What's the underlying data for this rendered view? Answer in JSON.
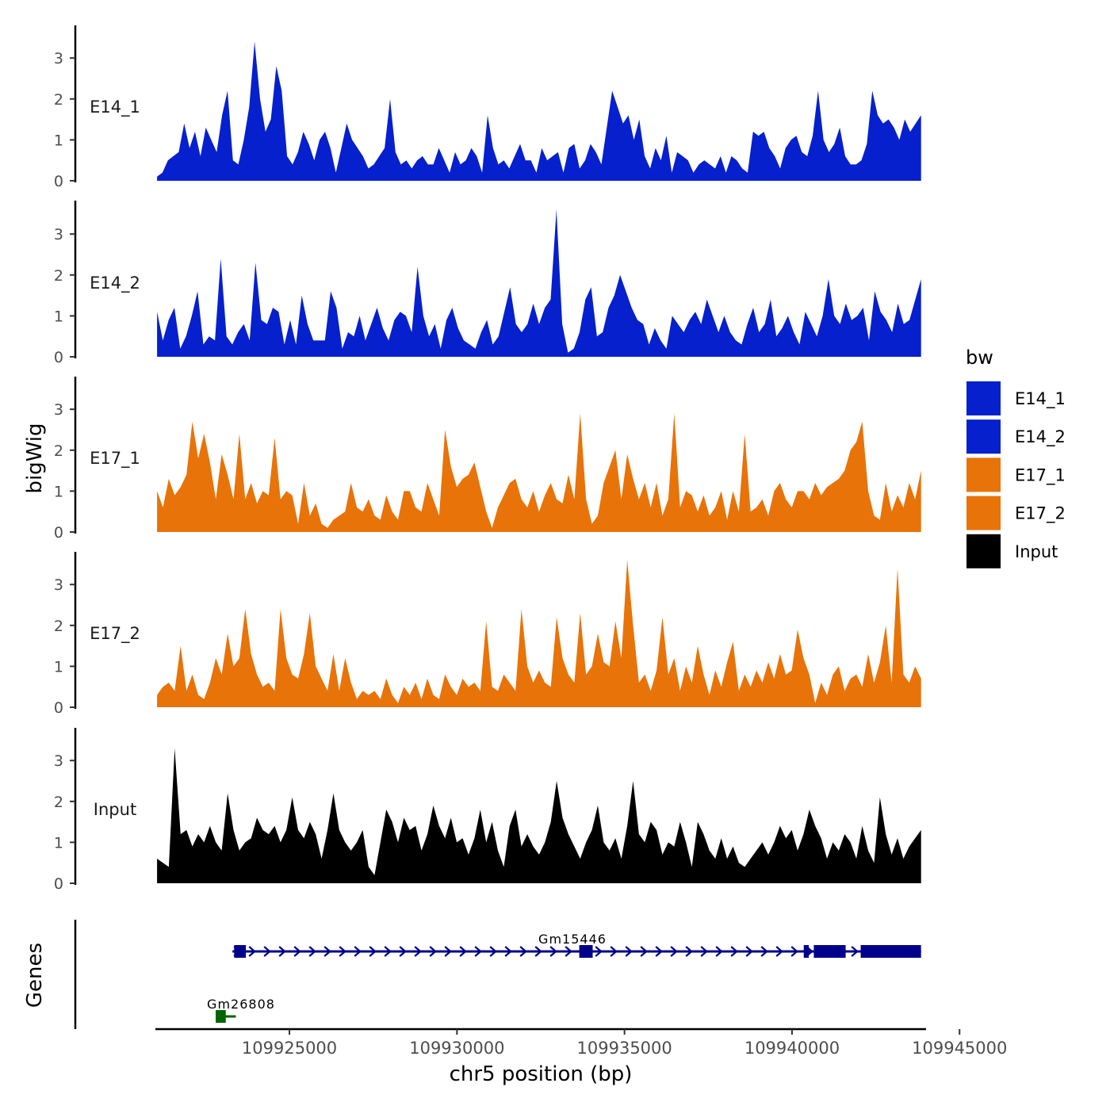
{
  "chart_data": {
    "type": "area",
    "y_axis_title": "bigWig",
    "genes_title": "Genes",
    "x_axis_title": "chr5 position (bp)",
    "x_range": [
      109921000,
      109944000
    ],
    "x_ticks": [
      109925000,
      109930000,
      109935000,
      109940000,
      109945000
    ],
    "x_tick_labels": [
      "109925000",
      "109930000",
      "109935000",
      "109940000",
      "109945000"
    ],
    "y_range": [
      0,
      3.8
    ],
    "y_ticks": [
      0,
      1,
      2,
      3
    ],
    "y_tick_labels": [
      "0",
      "1",
      "2",
      "3"
    ],
    "legend": {
      "title": "bw",
      "entries": [
        {
          "label": "E14_1",
          "color": "#0520CC"
        },
        {
          "label": "E14_2",
          "color": "#0520CC"
        },
        {
          "label": "E17_1",
          "color": "#E87309"
        },
        {
          "label": "E17_2",
          "color": "#E87309"
        },
        {
          "label": "Input",
          "color": "#000000"
        }
      ]
    },
    "series": [
      {
        "name": "E14_1",
        "color": "#0520CC",
        "x_start": 109921050,
        "x_end": 109943850,
        "values": [
          0.1,
          0.2,
          0.5,
          0.6,
          0.7,
          1.4,
          0.8,
          1.2,
          0.6,
          1.3,
          1.0,
          0.7,
          1.6,
          2.2,
          0.5,
          0.4,
          1.0,
          1.8,
          3.4,
          2.0,
          1.2,
          1.5,
          2.8,
          2.2,
          0.6,
          0.4,
          0.7,
          1.2,
          0.9,
          0.5,
          1.0,
          1.2,
          0.8,
          0.2,
          0.8,
          1.4,
          1.0,
          0.8,
          0.6,
          0.3,
          0.4,
          0.6,
          0.8,
          2.0,
          0.7,
          0.4,
          0.5,
          0.3,
          0.5,
          0.6,
          0.4,
          0.4,
          0.8,
          0.5,
          0.2,
          0.7,
          0.4,
          0.5,
          0.8,
          0.6,
          0.2,
          1.6,
          0.8,
          0.4,
          0.5,
          0.3,
          0.6,
          0.9,
          0.5,
          0.5,
          0.2,
          0.8,
          0.5,
          0.6,
          0.7,
          0.2,
          0.8,
          0.9,
          0.3,
          0.5,
          0.9,
          0.7,
          0.4,
          1.3,
          2.2,
          1.8,
          1.4,
          1.6,
          1.0,
          1.5,
          0.6,
          0.3,
          0.8,
          0.5,
          1.1,
          0.2,
          0.7,
          0.6,
          0.5,
          0.2,
          0.4,
          0.5,
          0.4,
          0.3,
          0.6,
          0.2,
          0.6,
          0.5,
          0.3,
          0.2,
          1.2,
          1.1,
          1.2,
          0.8,
          0.6,
          0.3,
          0.8,
          1.0,
          1.1,
          0.7,
          0.6,
          1.1,
          2.2,
          1.0,
          0.7,
          0.9,
          1.3,
          0.6,
          0.4,
          0.4,
          0.5,
          0.9,
          2.2,
          1.6,
          1.4,
          1.5,
          1.3,
          1.0,
          1.5,
          1.2,
          1.4,
          1.6
        ]
      },
      {
        "name": "E14_2",
        "color": "#0520CC",
        "x_start": 109921050,
        "x_end": 109943850,
        "values": [
          1.1,
          0.4,
          0.9,
          1.2,
          0.2,
          0.5,
          1.0,
          1.6,
          0.3,
          0.5,
          0.4,
          2.4,
          0.5,
          0.3,
          0.6,
          0.8,
          0.4,
          2.3,
          0.9,
          0.8,
          1.2,
          1.1,
          0.3,
          0.9,
          0.3,
          1.5,
          0.8,
          0.4,
          0.4,
          0.4,
          1.6,
          1.2,
          0.2,
          0.6,
          0.5,
          1.0,
          0.4,
          0.8,
          1.2,
          0.7,
          0.4,
          0.9,
          1.1,
          1.0,
          0.6,
          2.2,
          1.0,
          0.5,
          0.8,
          0.2,
          0.9,
          1.2,
          0.7,
          0.4,
          0.3,
          0.2,
          0.6,
          0.9,
          0.3,
          0.5,
          1.1,
          1.7,
          0.8,
          0.6,
          0.8,
          1.3,
          0.8,
          1.2,
          1.4,
          3.6,
          0.8,
          0.1,
          0.2,
          0.6,
          1.4,
          1.7,
          0.5,
          0.6,
          1.2,
          1.5,
          2.0,
          1.6,
          1.2,
          0.9,
          0.8,
          0.3,
          0.7,
          0.4,
          0.2,
          1.0,
          0.8,
          0.6,
          0.9,
          1.1,
          0.8,
          1.4,
          1.0,
          0.6,
          1.0,
          0.6,
          0.4,
          0.3,
          0.8,
          1.2,
          0.6,
          0.8,
          1.4,
          0.5,
          0.7,
          1.0,
          0.6,
          0.3,
          1.1,
          0.8,
          0.5,
          1.0,
          1.9,
          1.0,
          0.8,
          1.3,
          0.9,
          1.0,
          1.2,
          0.4,
          1.6,
          1.1,
          0.9,
          0.6,
          1.3,
          0.8,
          0.9,
          1.4,
          1.9
        ]
      },
      {
        "name": "E17_1",
        "color": "#E87309",
        "x_start": 109921050,
        "x_end": 109943850,
        "values": [
          1.0,
          0.6,
          1.3,
          0.9,
          1.1,
          1.4,
          2.7,
          1.8,
          2.4,
          1.7,
          0.8,
          1.9,
          1.4,
          0.8,
          2.4,
          0.8,
          1.2,
          0.7,
          1.0,
          0.9,
          2.3,
          0.8,
          1.0,
          0.9,
          0.2,
          1.2,
          0.4,
          0.7,
          0.2,
          0.1,
          0.3,
          0.4,
          0.5,
          1.2,
          0.6,
          0.5,
          0.8,
          0.4,
          0.3,
          0.9,
          0.5,
          0.3,
          1.0,
          1.0,
          0.6,
          0.5,
          1.2,
          0.8,
          0.4,
          2.5,
          1.6,
          1.1,
          1.3,
          1.4,
          1.7,
          1.1,
          0.5,
          0.1,
          0.6,
          0.9,
          1.2,
          1.3,
          0.8,
          0.6,
          1.0,
          0.5,
          0.9,
          1.2,
          0.8,
          0.7,
          1.4,
          0.8,
          2.9,
          0.8,
          0.2,
          0.4,
          1.2,
          1.6,
          2.0,
          0.8,
          1.9,
          1.3,
          0.8,
          1.2,
          0.6,
          1.2,
          0.4,
          0.8,
          2.9,
          0.6,
          1.0,
          0.9,
          0.5,
          0.9,
          0.4,
          0.6,
          1.0,
          0.3,
          1.0,
          0.5,
          2.4,
          0.5,
          0.6,
          0.8,
          0.4,
          1.0,
          1.2,
          0.8,
          0.6,
          1.0,
          1.0,
          0.8,
          1.2,
          0.9,
          1.1,
          1.2,
          1.3,
          1.5,
          2.0,
          2.2,
          2.7,
          1.0,
          0.4,
          0.3,
          1.2,
          0.5,
          0.9,
          0.6,
          1.2,
          0.8,
          1.5
        ]
      },
      {
        "name": "E17_2",
        "color": "#E87309",
        "x_start": 109921050,
        "x_end": 109943850,
        "values": [
          0.3,
          0.5,
          0.6,
          0.4,
          1.5,
          0.4,
          0.8,
          0.3,
          0.2,
          0.6,
          1.2,
          0.8,
          1.8,
          1.0,
          1.2,
          2.4,
          1.3,
          0.8,
          0.5,
          0.6,
          0.4,
          2.4,
          1.2,
          0.8,
          0.7,
          1.3,
          2.3,
          1.0,
          0.7,
          0.4,
          1.3,
          0.4,
          1.2,
          0.6,
          0.2,
          0.4,
          0.3,
          0.4,
          0.2,
          0.7,
          0.3,
          0.1,
          0.5,
          0.3,
          0.6,
          0.2,
          0.7,
          0.3,
          0.2,
          0.8,
          0.5,
          0.3,
          0.7,
          0.5,
          0.6,
          0.4,
          2.1,
          0.5,
          0.4,
          0.8,
          0.6,
          0.4,
          2.4,
          1.0,
          0.6,
          0.9,
          0.6,
          0.5,
          2.2,
          1.2,
          0.8,
          0.6,
          2.3,
          0.8,
          1.0,
          1.8,
          1.1,
          1.0,
          2.1,
          1.2,
          3.6,
          2.0,
          0.6,
          0.8,
          0.4,
          0.9,
          2.2,
          0.8,
          1.2,
          0.4,
          1.0,
          0.6,
          1.5,
          0.8,
          0.3,
          0.9,
          0.5,
          1.1,
          1.6,
          0.4,
          0.8,
          0.5,
          0.9,
          0.6,
          1.1,
          0.7,
          1.3,
          0.8,
          0.9,
          1.9,
          1.2,
          0.8,
          0.1,
          0.6,
          0.3,
          0.8,
          1.0,
          0.4,
          0.7,
          0.8,
          0.5,
          1.3,
          0.6,
          1.1,
          2.0,
          0.6,
          3.4,
          0.8,
          0.6,
          1.0,
          0.7
        ]
      },
      {
        "name": "Input",
        "color": "#000000",
        "x_start": 109921050,
        "x_end": 109943850,
        "values": [
          0.6,
          0.5,
          0.4,
          3.3,
          1.2,
          1.3,
          0.9,
          1.2,
          1.0,
          1.4,
          1.0,
          0.8,
          2.2,
          1.3,
          0.8,
          1.0,
          1.1,
          1.6,
          1.3,
          1.2,
          1.4,
          1.0,
          1.3,
          2.1,
          1.3,
          1.1,
          1.5,
          1.2,
          0.6,
          1.3,
          2.2,
          1.3,
          1.0,
          0.8,
          1.0,
          1.3,
          0.4,
          0.2,
          1.0,
          1.8,
          1.5,
          1.0,
          1.6,
          1.3,
          1.4,
          0.8,
          1.2,
          1.9,
          1.4,
          1.1,
          1.6,
          1.0,
          1.1,
          0.7,
          1.1,
          1.8,
          1.0,
          1.5,
          0.8,
          0.4,
          1.4,
          1.8,
          0.9,
          1.2,
          0.9,
          0.7,
          1.0,
          1.5,
          2.5,
          1.6,
          1.2,
          0.9,
          0.6,
          1.0,
          1.3,
          1.9,
          1.0,
          0.8,
          1.1,
          0.6,
          1.4,
          2.5,
          1.2,
          1.0,
          1.5,
          1.3,
          0.7,
          1.0,
          0.9,
          1.5,
          1.0,
          0.4,
          1.5,
          1.2,
          0.8,
          0.6,
          1.1,
          0.6,
          0.9,
          0.5,
          0.4,
          0.6,
          0.8,
          1.0,
          0.7,
          1.0,
          1.4,
          1.1,
          1.3,
          0.8,
          1.2,
          1.8,
          1.4,
          1.1,
          0.6,
          1.0,
          0.8,
          1.2,
          1.0,
          0.6,
          1.4,
          0.8,
          0.5,
          2.1,
          1.2,
          0.7,
          1.1,
          0.6,
          0.9,
          1.1,
          1.3
        ]
      }
    ],
    "genes": [
      {
        "name": "Gm15446",
        "color": "#00008B",
        "strand": "+",
        "track": 1,
        "start": 109923300,
        "end": 109943850,
        "exons": [
          [
            109923350,
            109923700
          ],
          [
            109933650,
            109934050
          ],
          [
            109940350,
            109940500
          ],
          [
            109940650,
            109941600
          ],
          [
            109942050,
            109943850
          ]
        ]
      },
      {
        "name": "Gm26808",
        "color": "#006400",
        "strand": "-",
        "track": 2,
        "start": 109922800,
        "end": 109923400,
        "exons": [
          [
            109922800,
            109923100
          ]
        ]
      }
    ]
  }
}
